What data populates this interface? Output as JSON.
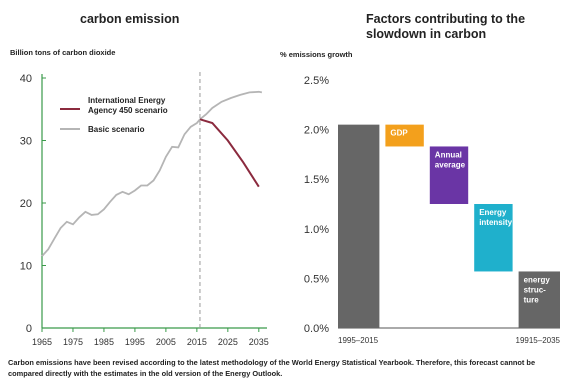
{
  "chart_data": [
    {
      "type": "line",
      "title": "carbon emission",
      "ylabel": "Billion tons of carbon dioxide",
      "xlim": [
        1965,
        2037
      ],
      "ylim": [
        0,
        40
      ],
      "x_ticks": [
        "1965",
        "1975",
        "1985",
        "1995",
        "2005",
        "2015",
        "2025",
        "2035"
      ],
      "y_ticks": [
        "0",
        "10",
        "20",
        "30",
        "40"
      ],
      "divider_x": 2016,
      "series": [
        {
          "name": "International Energy Agency 450 scenario",
          "color": "#8b2a3e",
          "points": [
            [
              2016,
              33.4
            ],
            [
              2020,
              32.8
            ],
            [
              2025,
              30.0
            ],
            [
              2030,
              26.5
            ],
            [
              2035,
              22.6
            ]
          ]
        },
        {
          "name": "Basic scenario",
          "color": "#b5b5b5",
          "points": [
            [
              1965,
              11.5
            ],
            [
              1967,
              12.6
            ],
            [
              1969,
              14.3
            ],
            [
              1971,
              16.0
            ],
            [
              1973,
              17.0
            ],
            [
              1975,
              16.6
            ],
            [
              1977,
              17.7
            ],
            [
              1979,
              18.6
            ],
            [
              1981,
              18.1
            ],
            [
              1983,
              18.2
            ],
            [
              1985,
              19.0
            ],
            [
              1987,
              20.2
            ],
            [
              1989,
              21.3
            ],
            [
              1991,
              21.8
            ],
            [
              1993,
              21.4
            ],
            [
              1995,
              22.0
            ],
            [
              1997,
              22.8
            ],
            [
              1999,
              22.8
            ],
            [
              2001,
              23.6
            ],
            [
              2003,
              25.2
            ],
            [
              2005,
              27.4
            ],
            [
              2007,
              29.0
            ],
            [
              2009,
              28.9
            ],
            [
              2011,
              31.0
            ],
            [
              2013,
              32.2
            ],
            [
              2015,
              32.8
            ],
            [
              2016,
              33.4
            ],
            [
              2018,
              34.2
            ],
            [
              2020,
              35.2
            ],
            [
              2023,
              36.2
            ],
            [
              2026,
              36.8
            ],
            [
              2029,
              37.3
            ],
            [
              2032,
              37.7
            ],
            [
              2035,
              37.8
            ],
            [
              2036,
              37.7
            ]
          ]
        }
      ]
    },
    {
      "type": "bar",
      "subtype": "waterfall",
      "title": "Factors contributing to the slowdown in carbon",
      "ylabel": "% emissions growth",
      "ylim": [
        0,
        2.5
      ],
      "y_ticks": [
        "0.0%",
        "0.5%",
        "1.0%",
        "1.5%",
        "2.0%",
        "2.5%"
      ],
      "bars": [
        {
          "label": "",
          "start": 0.0,
          "end": 2.05,
          "color": "#666666",
          "axis_label": "1995–2015"
        },
        {
          "label": "GDP",
          "start": 2.05,
          "end": 1.83,
          "color": "#f3a01c",
          "axis_label": ""
        },
        {
          "label": "Annual average",
          "start": 1.83,
          "end": 1.25,
          "color": "#6a35a5",
          "axis_label": ""
        },
        {
          "label": "Energy intensity",
          "start": 1.25,
          "end": 0.57,
          "color": "#1fb0cc",
          "axis_label": ""
        },
        {
          "label": "energy structure",
          "start": 0.57,
          "end": 0.0,
          "color": "#666666",
          "axis_label": "19915–2035"
        }
      ]
    }
  ],
  "footnote": "Carbon emissions have been revised according to the latest methodology of the World Energy Statistical Yearbook. Therefore, this forecast cannot be compared directly with the estimates in the old version of the Energy Outlook."
}
